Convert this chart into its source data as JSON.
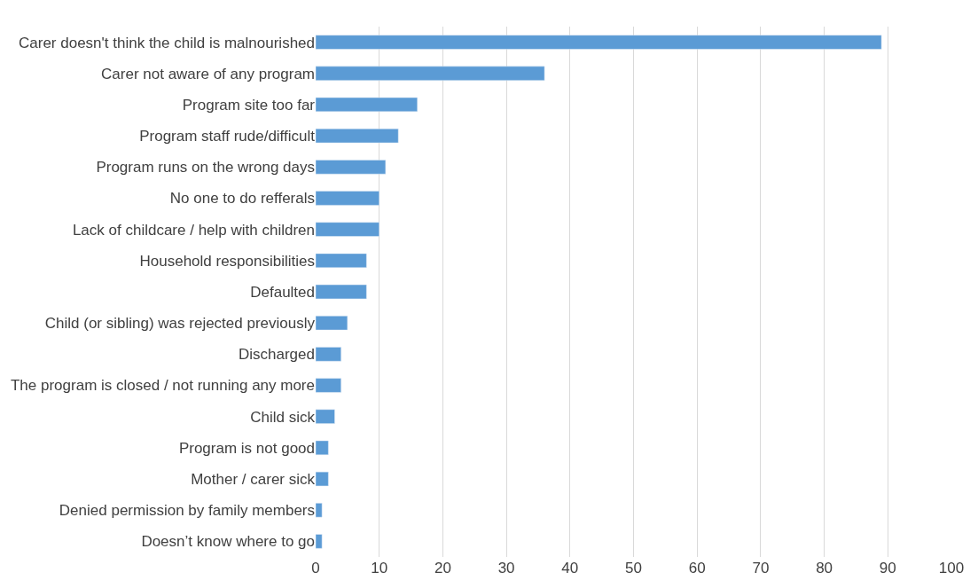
{
  "chart_data": {
    "type": "bar",
    "orientation": "horizontal",
    "categories": [
      "Carer doesn't think the child is malnourished",
      "Carer not aware of any program",
      "Program site too far",
      "Program staff rude/difficult",
      "Program runs on the wrong days",
      "No one to do refferals",
      "Lack of childcare / help with children",
      "Household responsibilities",
      "Defaulted",
      "Child (or sibling) was rejected previously",
      "Discharged",
      "The program is closed / not running any more",
      "Child sick",
      "Program is not good",
      "Mother / carer sick",
      "Denied permission by family members",
      "Doesn’t know where to go"
    ],
    "values": [
      89,
      36,
      16,
      13,
      11,
      10,
      10,
      8,
      8,
      5,
      4,
      4,
      3,
      2,
      2,
      1,
      1
    ],
    "color": "#5b9bd5",
    "xlim": [
      0,
      100
    ],
    "xticks": [
      0,
      10,
      20,
      30,
      40,
      50,
      60,
      70,
      80,
      90,
      100
    ],
    "grid": "x"
  }
}
